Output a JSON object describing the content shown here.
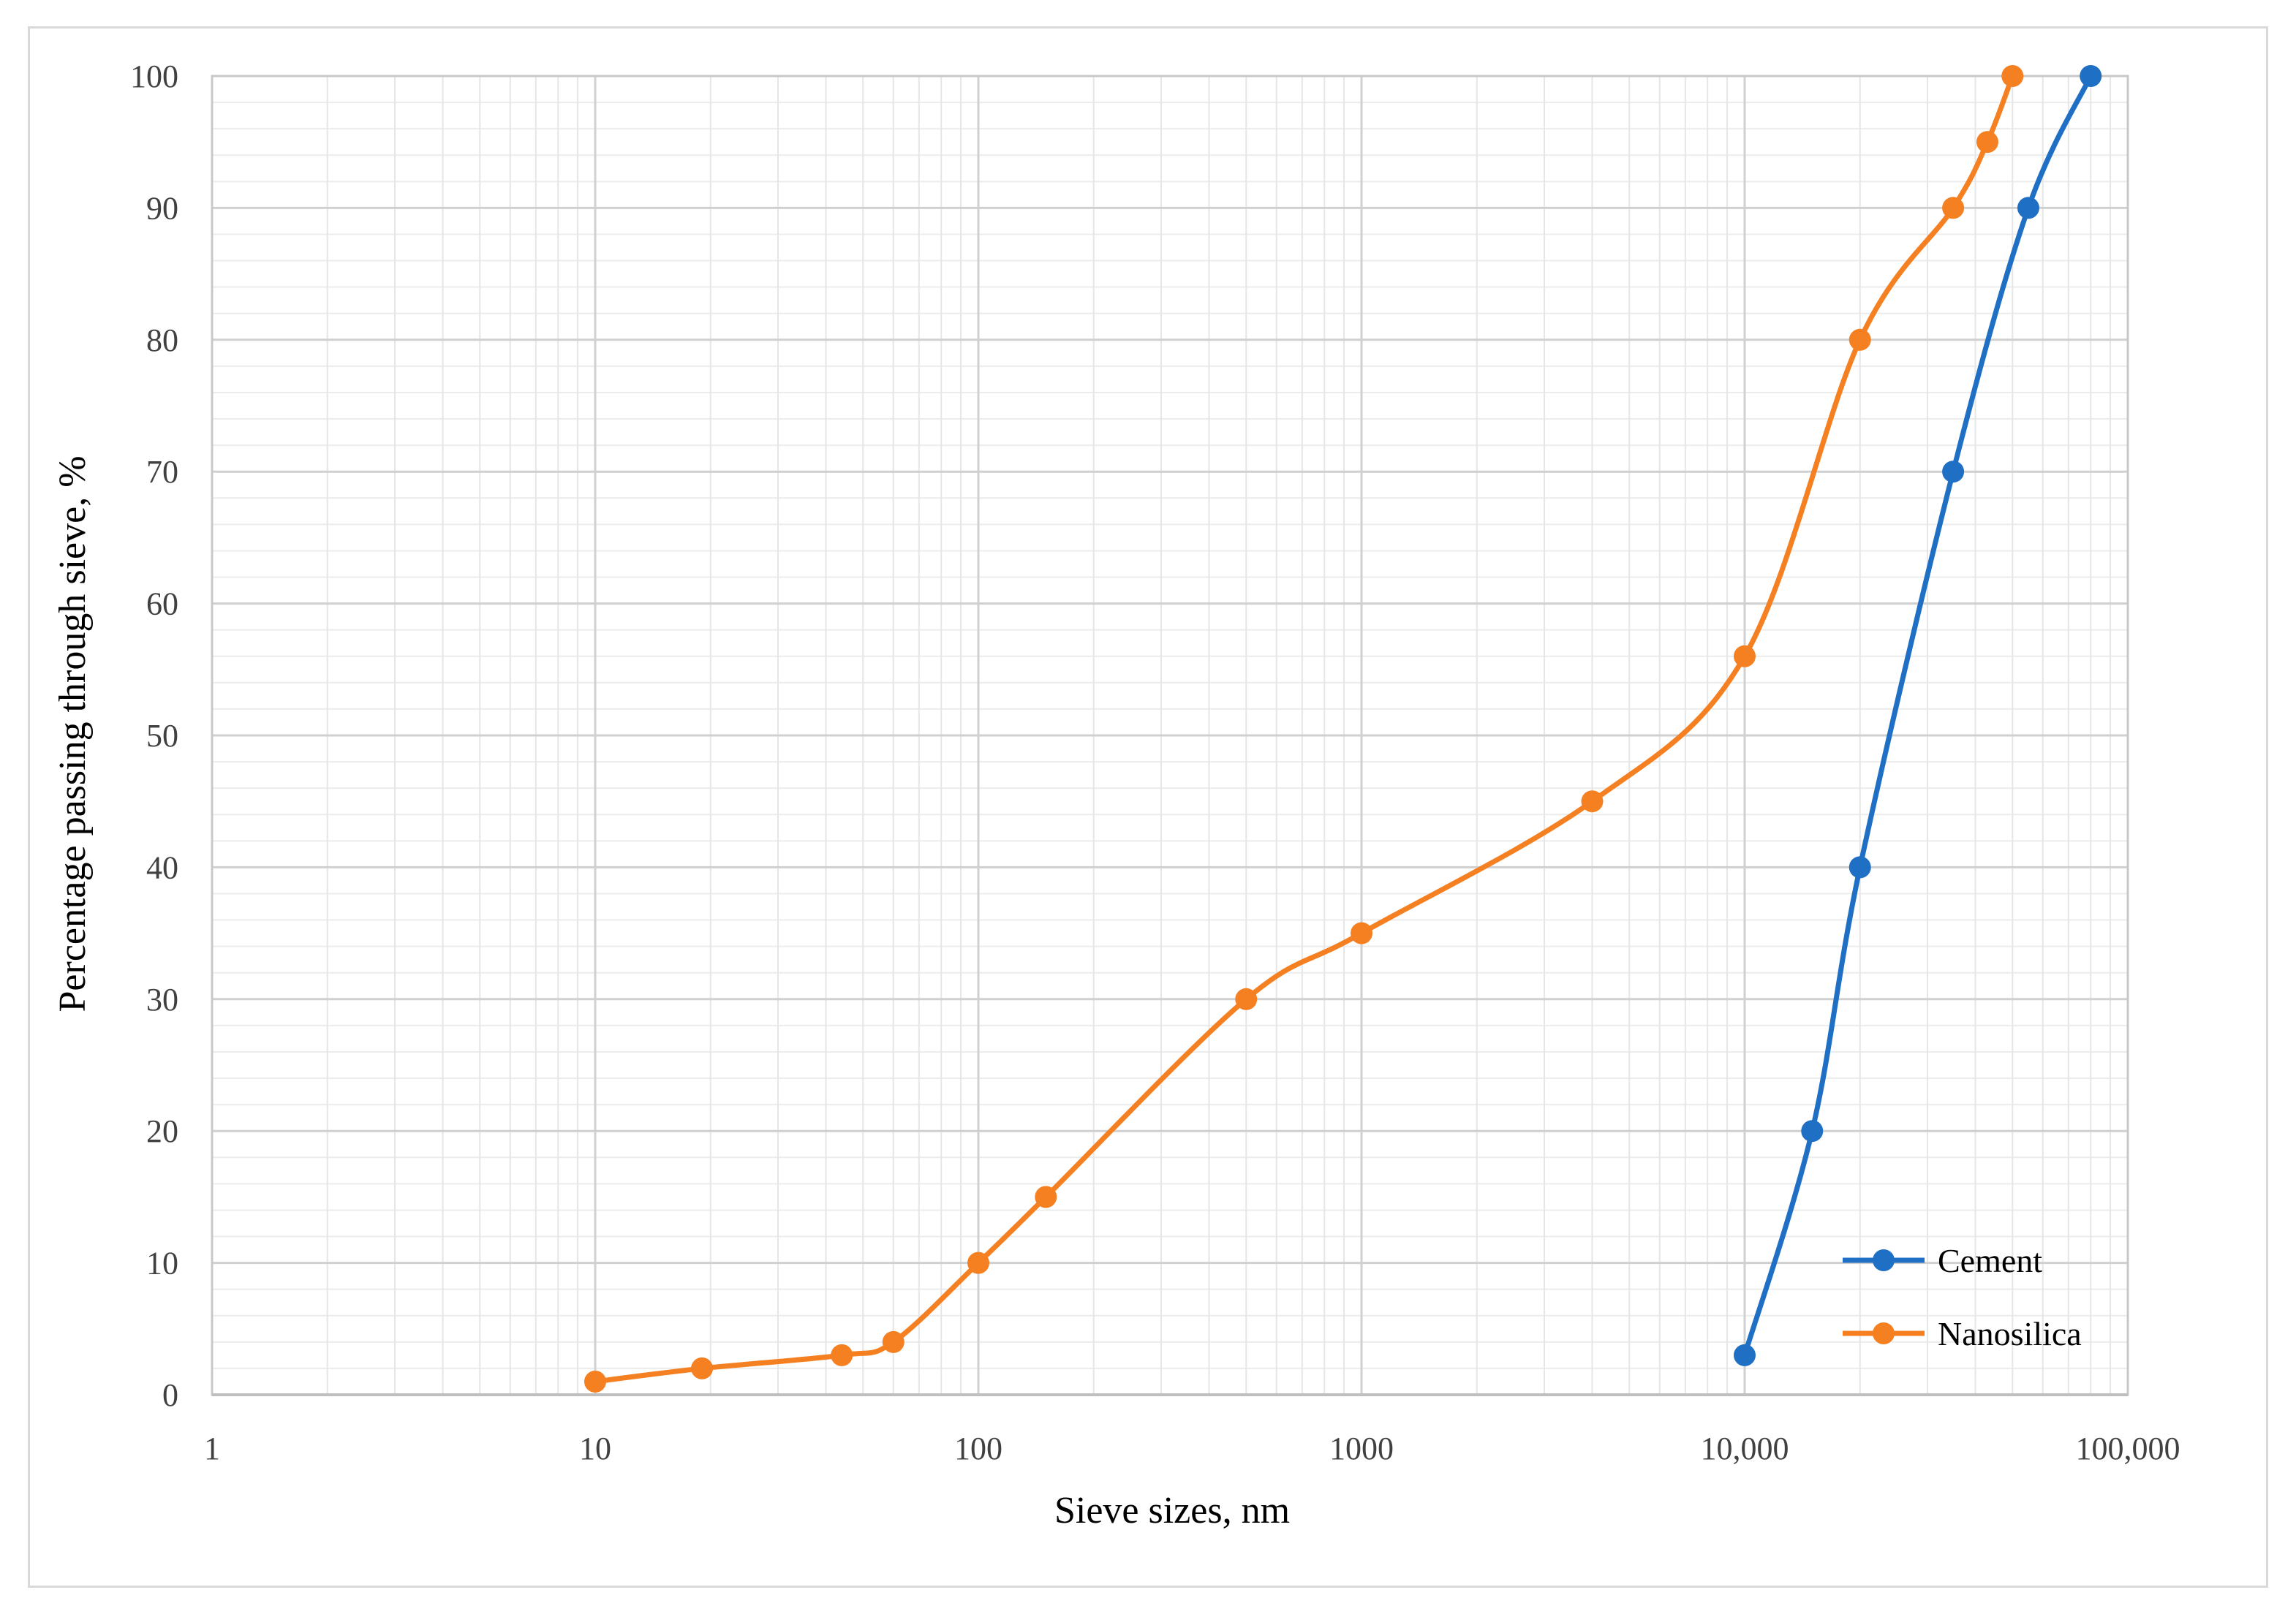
{
  "chart_data": {
    "type": "line",
    "title": "",
    "xlabel": "Sieve sizes, nm",
    "ylabel": "Percentage passing through sieve, %",
    "xscale": "log",
    "xlim": [
      1,
      100000
    ],
    "ylim": [
      0,
      100
    ],
    "x_ticks": [
      1,
      10,
      100,
      1000,
      10000,
      100000
    ],
    "x_tick_labels": [
      "1",
      "10",
      "100",
      "1000",
      "10,000",
      "100,000"
    ],
    "y_ticks": [
      0,
      10,
      20,
      30,
      40,
      50,
      60,
      70,
      80,
      90,
      100
    ],
    "y_tick_labels": [
      "0",
      "10",
      "20",
      "30",
      "40",
      "50",
      "60",
      "70",
      "80",
      "90",
      "100"
    ],
    "grid": true,
    "legend_position": "bottom-right",
    "series": [
      {
        "name": "Cement",
        "color": "#1f6fc5",
        "x": [
          10000,
          15000,
          20000,
          35000,
          55000,
          80000
        ],
        "y": [
          3,
          20,
          40,
          70,
          90,
          100
        ]
      },
      {
        "name": "Nanosilica",
        "color": "#f58022",
        "x": [
          10,
          19,
          44,
          60,
          100,
          150,
          500,
          1000,
          4000,
          10000,
          20000,
          35000,
          43000,
          50000
        ],
        "y": [
          1,
          2,
          3,
          4,
          10,
          15,
          30,
          35,
          45,
          56,
          80,
          90,
          95,
          100
        ]
      }
    ]
  }
}
